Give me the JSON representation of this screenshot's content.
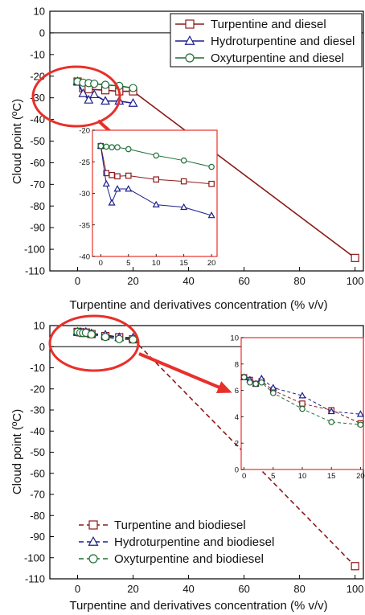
{
  "chart_data": [
    {
      "type": "line",
      "xlabel": "Turpentine and derivatives concentration (% v/v)",
      "ylabel": "Cloud point (ºC)",
      "xlim": [
        -10,
        103
      ],
      "ylim": [
        -110,
        10
      ],
      "xticks": [
        0,
        20,
        40,
        60,
        80,
        100
      ],
      "yticks": [
        10,
        0,
        -10,
        -20,
        -30,
        -40,
        -50,
        -60,
        -70,
        -80,
        -90,
        -100,
        -110
      ],
      "legend_position": "top-right",
      "series": [
        {
          "name": "Turpentine and diesel",
          "color": "#8b1a1a",
          "marker": "square",
          "dash": "solid",
          "x": [
            0,
            2,
            4,
            10,
            15,
            20,
            100
          ],
          "y": [
            -22.5,
            -25.5,
            -26,
            -26.5,
            -27,
            -27,
            -104
          ]
        },
        {
          "name": "Hydroturpentine and diesel",
          "color": "#1e1e8c",
          "marker": "triangle",
          "dash": "solid",
          "x": [
            0,
            2,
            4,
            6,
            10,
            15,
            20
          ],
          "y": [
            -22.5,
            -28,
            -31,
            -28.5,
            -31.5,
            -31.5,
            -32.5
          ]
        },
        {
          "name": "Oxyturpentine and diesel",
          "color": "#1e6e35",
          "marker": "circle",
          "dash": "solid",
          "x": [
            0,
            2,
            4,
            6,
            10,
            15,
            20
          ],
          "y": [
            -22.5,
            -23,
            -23.2,
            -23.5,
            -24,
            -24.5,
            -25.5
          ]
        }
      ],
      "inset": {
        "xlim": [
          -1.5,
          21
        ],
        "ylim": [
          -40,
          -20
        ],
        "xticks": [
          0,
          5,
          10,
          15,
          20
        ],
        "yticks": [
          -20,
          -25,
          -30,
          -35,
          -40
        ],
        "series": [
          {
            "name": "Turpentine and diesel",
            "x": [
              0,
              1,
              2,
              3,
              5,
              10,
              15,
              20
            ],
            "y": [
              -22.5,
              -26.8,
              -27.1,
              -27.3,
              -27.2,
              -27.8,
              -28.1,
              -28.5
            ]
          },
          {
            "name": "Hydroturpentine and diesel",
            "x": [
              0,
              1,
              2,
              3,
              5,
              10,
              15,
              20
            ],
            "y": [
              -22.5,
              -28.5,
              -31.5,
              -29.3,
              -29.3,
              -31.8,
              -32.2,
              -33.5
            ]
          },
          {
            "name": "Oxyturpentine and diesel",
            "x": [
              0,
              1,
              2,
              3,
              5,
              10,
              15,
              20
            ],
            "y": [
              -22.5,
              -22.6,
              -22.7,
              -22.7,
              -23,
              -24,
              -24.8,
              -25.8
            ]
          }
        ]
      }
    },
    {
      "type": "line",
      "xlabel": "Turpentine and derivatives concentration (% v/v)",
      "ylabel": "Cloud point (ºC)",
      "xlim": [
        -10,
        103
      ],
      "ylim": [
        -110,
        10
      ],
      "xticks": [
        0,
        20,
        40,
        60,
        80,
        100
      ],
      "yticks": [
        10,
        0,
        -10,
        -20,
        -30,
        -40,
        -50,
        -60,
        -70,
        -80,
        -90,
        -100,
        -110
      ],
      "legend_position": "bottom-left",
      "series": [
        {
          "name": "Turpentine and biodiesel",
          "color": "#8b1a1a",
          "marker": "square",
          "dash": "dashed",
          "x": [
            0,
            1,
            2,
            3,
            5,
            10,
            15,
            20,
            100
          ],
          "y": [
            7,
            6.8,
            6.5,
            6.7,
            6,
            5,
            4.5,
            3.5,
            -104
          ]
        },
        {
          "name": "Hydroturpentine and biodiesel",
          "color": "#1e1e8c",
          "marker": "triangle",
          "dash": "dashed",
          "x": [
            0,
            1,
            2,
            3,
            5,
            10,
            15,
            20
          ],
          "y": [
            7,
            6.8,
            6.5,
            6.9,
            6.2,
            5.6,
            4.4,
            4.2
          ]
        },
        {
          "name": "Oxyturpentine and biodiesel",
          "color": "#1e6e35",
          "marker": "circle",
          "dash": "dashed",
          "x": [
            0,
            1,
            2,
            3,
            5,
            10,
            15,
            20
          ],
          "y": [
            7,
            6.6,
            6.5,
            6.6,
            5.8,
            4.6,
            3.6,
            3.4
          ]
        }
      ],
      "inset": {
        "xlim": [
          -0.5,
          20.5
        ],
        "ylim": [
          0,
          10
        ],
        "xticks": [
          0,
          5,
          10,
          15,
          20
        ],
        "yticks": [
          0,
          2,
          4,
          6,
          8,
          10
        ],
        "series": [
          {
            "name": "Turpentine and biodiesel",
            "x": [
              0,
              1,
              2,
              3,
              5,
              10,
              15,
              20
            ],
            "y": [
              7,
              6.8,
              6.5,
              6.7,
              6,
              5,
              4.5,
              3.5
            ]
          },
          {
            "name": "Hydroturpentine and biodiesel",
            "x": [
              0,
              1,
              2,
              3,
              5,
              10,
              15,
              20
            ],
            "y": [
              7,
              6.8,
              6.5,
              6.9,
              6.2,
              5.6,
              4.4,
              4.2
            ]
          },
          {
            "name": "Oxyturpentine and biodiesel",
            "x": [
              0,
              1,
              2,
              3,
              5,
              10,
              15,
              20
            ],
            "y": [
              7,
              6.6,
              6.5,
              6.6,
              5.8,
              4.6,
              3.6,
              3.4
            ]
          }
        ]
      }
    }
  ]
}
